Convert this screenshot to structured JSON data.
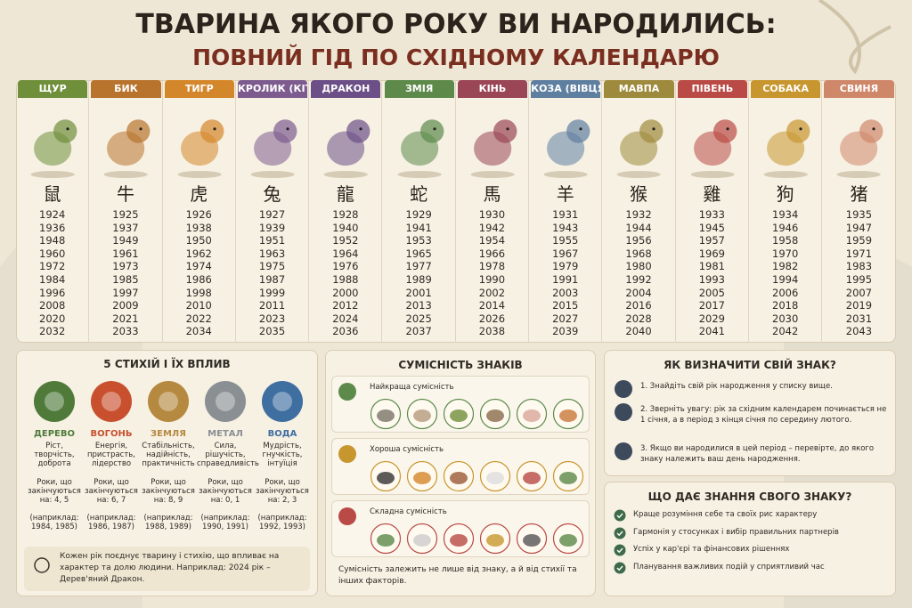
{
  "header": {
    "title": "ТВАРИНА ЯКОГО РОКУ ВИ НАРОДИЛИСЬ:",
    "subtitle": "ПОВНИЙ ГІД ПО СХІДНОМУ КАЛЕНДАРЮ"
  },
  "animals": [
    {
      "name": "ЩУР",
      "color": "#6f8f3a",
      "glyph": "鼠",
      "years": [
        1924,
        1936,
        1948,
        1960,
        1972,
        1984,
        1996,
        2008,
        2020,
        2032
      ]
    },
    {
      "name": "БИК",
      "color": "#b8732c",
      "glyph": "牛",
      "years": [
        1925,
        1937,
        1949,
        1961,
        1973,
        1985,
        1997,
        2009,
        2021,
        2033
      ]
    },
    {
      "name": "ТИГР",
      "color": "#d4862a",
      "glyph": "虎",
      "years": [
        1926,
        1938,
        1950,
        1962,
        1974,
        1986,
        1998,
        2010,
        2022,
        2034
      ]
    },
    {
      "name": "КРОЛИК (КІТ)",
      "color": "#7d5b8e",
      "glyph": "兔",
      "years": [
        1927,
        1939,
        1951,
        1963,
        1975,
        1987,
        1999,
        2011,
        2023,
        2035
      ]
    },
    {
      "name": "ДРАКОН",
      "color": "#6b4f86",
      "glyph": "龍",
      "years": [
        1928,
        1940,
        1952,
        1964,
        1976,
        1988,
        2000,
        2012,
        2024,
        2036
      ]
    },
    {
      "name": "ЗМІЯ",
      "color": "#5d8a4a",
      "glyph": "蛇",
      "years": [
        1929,
        1941,
        1953,
        1965,
        1977,
        1989,
        2001,
        2013,
        2025,
        2037
      ]
    },
    {
      "name": "КІНЬ",
      "color": "#9a4656",
      "glyph": "馬",
      "years": [
        1930,
        1942,
        1954,
        1966,
        1978,
        1990,
        2002,
        2014,
        2026,
        2038
      ]
    },
    {
      "name": "КОЗА (ВІВЦЯ)",
      "color": "#5f7fa0",
      "glyph": "羊",
      "years": [
        1931,
        1943,
        1955,
        1967,
        1979,
        1991,
        2003,
        2015,
        2027,
        2039
      ]
    },
    {
      "name": "МАВПА",
      "color": "#9e8a3c",
      "glyph": "猴",
      "years": [
        1932,
        1944,
        1956,
        1968,
        1980,
        1992,
        2004,
        2016,
        2028,
        2040
      ]
    },
    {
      "name": "ПІВЕНЬ",
      "color": "#b94a45",
      "glyph": "雞",
      "years": [
        1933,
        1945,
        1957,
        1969,
        1981,
        1993,
        2005,
        2017,
        2029,
        2041
      ]
    },
    {
      "name": "СОБАКА",
      "color": "#c8962e",
      "glyph": "狗",
      "years": [
        1934,
        1946,
        1958,
        1970,
        1982,
        1994,
        2006,
        2018,
        2030,
        2042
      ]
    },
    {
      "name": "СВИНЯ",
      "color": "#cf876a",
      "glyph": "猪",
      "years": [
        1935,
        1947,
        1959,
        1971,
        1983,
        1995,
        2007,
        2019,
        2031,
        2043
      ]
    }
  ],
  "elements": {
    "title": "5 СТИХІЙ І ЇХ ВПЛИВ",
    "items": [
      {
        "name": "ДЕРЕВО",
        "color": "#4f7a3a",
        "desc": "Ріст, творчість, доброта",
        "rule": "Роки, що закінчуються на: 4, 5",
        "example": "(наприклад: 1984, 1985)"
      },
      {
        "name": "ВОГОНЬ",
        "color": "#c8502e",
        "desc": "Енергія, пристрасть, лідерство",
        "rule": "Роки, що закінчуються на: 6, 7",
        "example": "(наприклад: 1986, 1987)"
      },
      {
        "name": "ЗЕМЛЯ",
        "color": "#b5893f",
        "desc": "Стабільність, надійність, практичність",
        "rule": "Роки, що закінчуються на: 8, 9",
        "example": "(наприклад: 1988, 1989)"
      },
      {
        "name": "МЕТАЛ",
        "color": "#8a8f94",
        "desc": "Сила, рішучість, справедливість",
        "rule": "Роки, що закінчуються на: 0, 1",
        "example": "(наприклад: 1990, 1991)"
      },
      {
        "name": "ВОДА",
        "color": "#3f6ea0",
        "desc": "Мудрість, гнучкість, інтуїція",
        "rule": "Роки, що закінчуються на: 2, 3",
        "example": "(наприклад: 1992, 1993)"
      }
    ],
    "note": "Кожен рік поєднує тварину і стихію, що впливає на характер та долю людини. Наприклад: 2024 рік – Дерев'яний Дракон."
  },
  "compatibility": {
    "title": "СУМІСНІСТЬ ЗНАКІВ",
    "groups": [
      {
        "label": "Найкраща сумісність",
        "color": "#5d8a4a"
      },
      {
        "label": "Хороша сумісність",
        "color": "#c8962e"
      },
      {
        "label": "Складна сумісність",
        "color": "#b94a45"
      }
    ],
    "note": "Сумісність залежить не лише від знаку, а й від стихії та інших факторів."
  },
  "howto": {
    "title": "ЯК ВИЗНАЧИТИ СВІЙ ЗНАК?",
    "steps": [
      "1. Знайдіть свій рік народження у списку вище.",
      "2. Зверніть увагу: рік за східним календарем починається не 1 січня, а в період з кінця січня по середину лютого.",
      "3. Якщо ви народилися в цей період – перевірте, до якого знаку належить ваш день народження."
    ]
  },
  "benefits": {
    "title": "ЩО ДАЄ ЗНАННЯ СВОГО ЗНАКУ?",
    "items": [
      "Краще розуміння себе та своїх рис характеру",
      "Гармонія у стосунках і вибір правильних партнерів",
      "Успіх у кар'єрі та фінансових рішеннях",
      "Планування важливих подій у сприятливий час"
    ]
  }
}
